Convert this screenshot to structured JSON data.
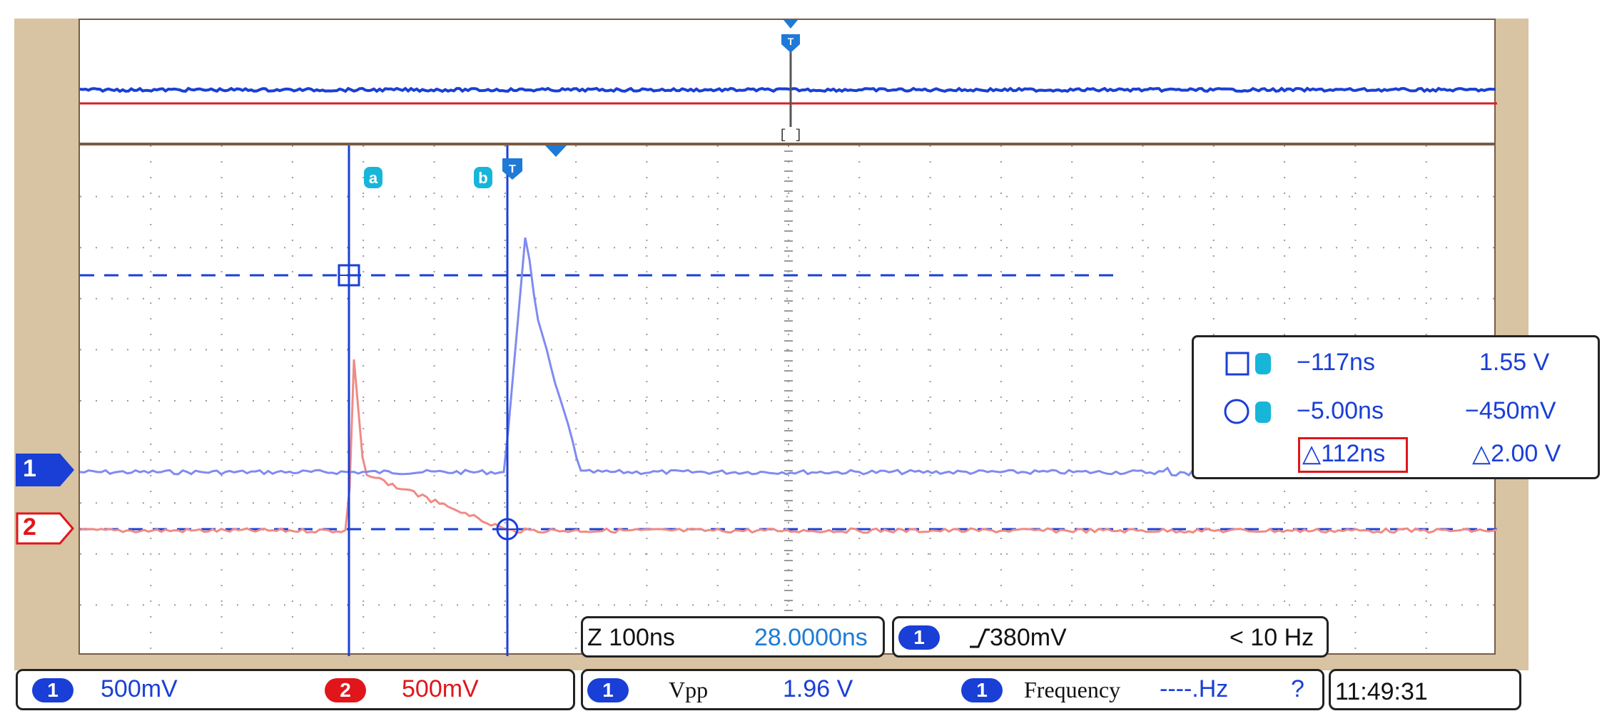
{
  "channel_markers": {
    "ch1": "1",
    "ch2": "2"
  },
  "cursor_labels": {
    "a": "a",
    "b": "b",
    "trigger": "T"
  },
  "cursor_readout": {
    "a": {
      "time": "−117ns",
      "voltage": "1.55 V"
    },
    "b": {
      "time": "−5.00ns",
      "voltage": "−450mV"
    },
    "delta": {
      "time": "△112ns",
      "voltage": "△2.00 V"
    }
  },
  "zoom_box": {
    "label": "Z 100ns",
    "value": "28.0000ns"
  },
  "trigger_box": {
    "channel": "1",
    "level": "380mV",
    "frequency": "< 10 Hz"
  },
  "status_bar": {
    "ch1": {
      "num": "1",
      "scale": "500mV"
    },
    "ch2": {
      "num": "2",
      "scale": "500mV"
    },
    "meas1": {
      "num": "1",
      "name": "Vpp",
      "value": "1.96 V"
    },
    "meas2": {
      "num": "1",
      "name": "Frequency",
      "value": "----.Hz",
      "flag": "?"
    },
    "time": "11:49:31"
  },
  "colors": {
    "ch1": "#1a3fd6",
    "ch2": "#e0161b",
    "cursor_label": "#17b6d9",
    "bezel": "#d8c3a2"
  }
}
